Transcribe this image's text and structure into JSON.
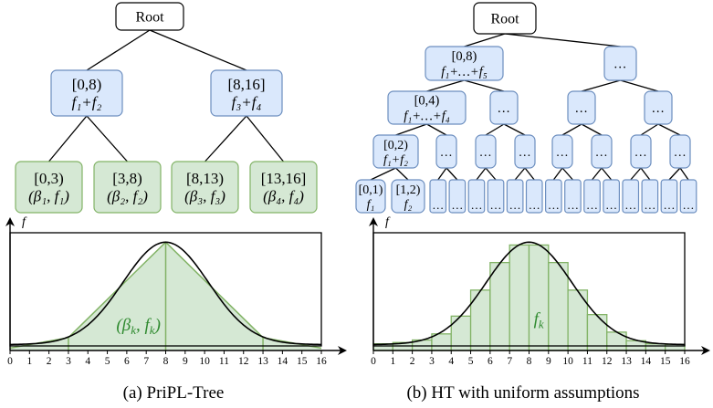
{
  "colors": {
    "blue_fill": "#dae8fc",
    "blue_stroke": "#6c8ebf",
    "green_fill": "#d5e8d4",
    "green_stroke": "#82b366",
    "green_text": "#2f8a2f"
  },
  "left_tree": {
    "root": "Root",
    "level1": [
      [
        "[0,8)",
        "f₁+f₂"
      ],
      [
        "[8,16]",
        "f₃+f₄"
      ]
    ],
    "leaves": [
      [
        "[0,3)",
        "(β₁, f₁)"
      ],
      [
        "[3,8)",
        "(β₂, f₂)"
      ],
      [
        "[8,13)",
        "(β₃, f₃)"
      ],
      [
        "[13,16]",
        "(β₄, f₄)"
      ]
    ]
  },
  "right_tree": {
    "root": "Root",
    "level1": [
      [
        "[0,8)",
        "f₁+…+f₅"
      ],
      [
        "…"
      ]
    ],
    "level2": [
      [
        "[0,4)",
        "f₁+…+f₄"
      ],
      [
        "…"
      ],
      [
        "…"
      ],
      [
        "…"
      ]
    ],
    "level3": [
      [
        "[0,2)",
        "f₁+f₂"
      ],
      [
        "…"
      ],
      [
        "…"
      ],
      [
        "…"
      ],
      [
        "…"
      ],
      [
        "…"
      ],
      [
        "…"
      ],
      [
        "…"
      ]
    ],
    "level4": [
      [
        "[0,1)",
        "f₁"
      ],
      [
        "[1,2)",
        "f₂"
      ],
      [
        "…"
      ],
      [
        "…"
      ],
      [
        "…"
      ],
      [
        "…"
      ],
      [
        "…"
      ],
      [
        "…"
      ],
      [
        "…"
      ],
      [
        "…"
      ],
      [
        "…"
      ],
      [
        "…"
      ],
      [
        "…"
      ],
      [
        "…"
      ],
      [
        "…"
      ],
      [
        "…"
      ]
    ]
  },
  "chart_data": [
    {
      "type": "area",
      "caption": "(a) PriPL-Tree",
      "ylabel": "f",
      "xlim": [
        0,
        16
      ],
      "x_ticks": [
        0,
        1,
        2,
        3,
        4,
        5,
        6,
        7,
        8,
        9,
        10,
        11,
        12,
        13,
        14,
        15,
        16
      ],
      "annotation": "(β_k, f_k)",
      "piecewise_linear": {
        "x": [
          0,
          3,
          8,
          13,
          16
        ],
        "y": [
          0.02,
          0.11,
          0.92,
          0.11,
          0.02
        ]
      },
      "breakpoints": [
        3,
        8,
        13
      ],
      "curve": {
        "type": "gaussian",
        "mean": 8,
        "sigma": 2.2,
        "peak": 0.92,
        "baseline": 0.05
      }
    },
    {
      "type": "bar",
      "caption": "(b) HT with uniform assumptions",
      "ylabel": "f",
      "xlim": [
        0,
        16
      ],
      "x_ticks": [
        0,
        1,
        2,
        3,
        4,
        5,
        6,
        7,
        8,
        9,
        10,
        11,
        12,
        13,
        14,
        15,
        16
      ],
      "annotation": "f_k",
      "bins": [
        [
          0,
          1
        ],
        [
          1,
          2
        ],
        [
          2,
          3
        ],
        [
          3,
          4
        ],
        [
          4,
          5
        ],
        [
          5,
          6
        ],
        [
          6,
          7
        ],
        [
          7,
          8
        ],
        [
          8,
          9
        ],
        [
          9,
          10
        ],
        [
          10,
          11
        ],
        [
          11,
          12
        ],
        [
          12,
          13
        ],
        [
          13,
          14
        ],
        [
          14,
          15
        ],
        [
          15,
          16
        ]
      ],
      "values": [
        0.057,
        0.068,
        0.089,
        0.141,
        0.292,
        0.513,
        0.747,
        0.896,
        0.896,
        0.747,
        0.513,
        0.305,
        0.156,
        0.083,
        0.057,
        0.052
      ],
      "curve": {
        "type": "gaussian",
        "mean": 8,
        "sigma": 2.2,
        "peak": 0.92,
        "baseline": 0.05
      }
    }
  ]
}
